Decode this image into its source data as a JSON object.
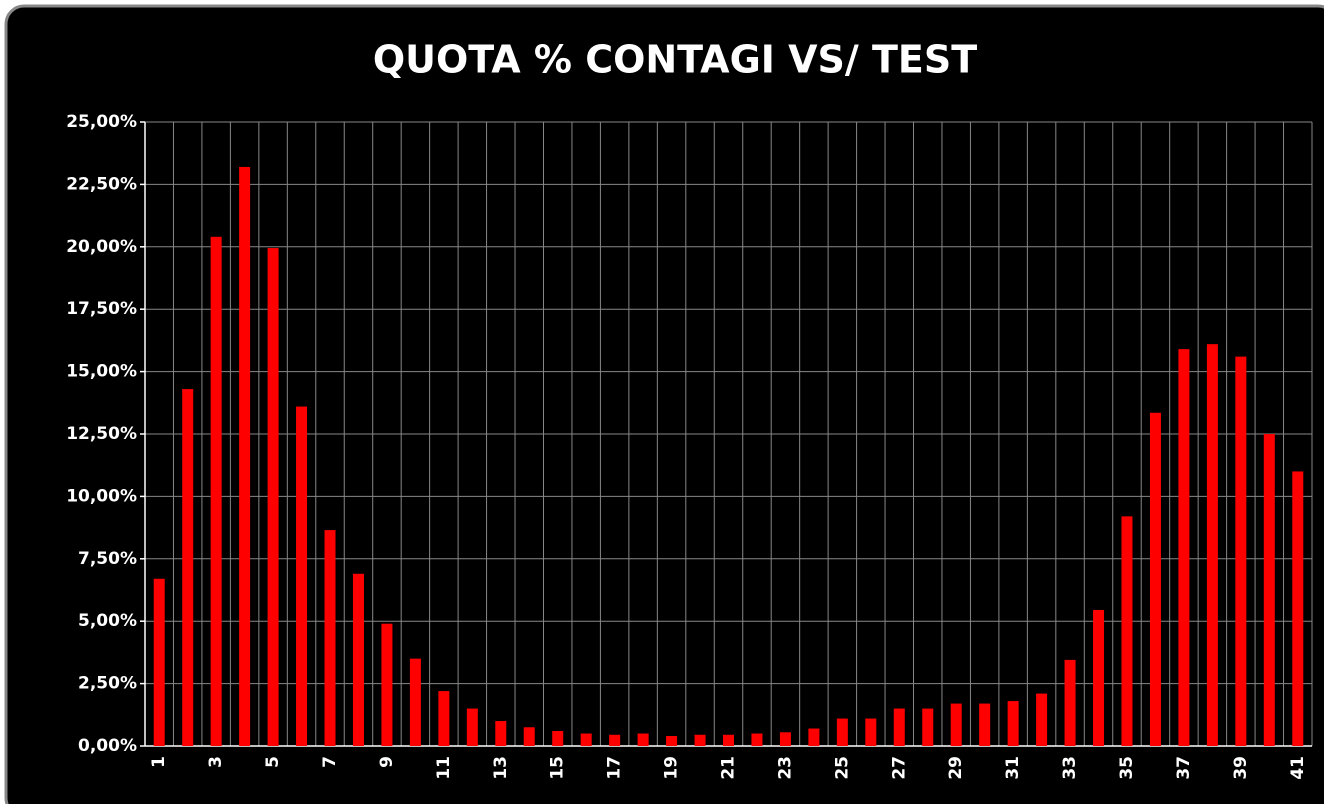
{
  "chart_data": {
    "type": "bar",
    "title": "QUOTA % CONTAGI VS/ TEST",
    "categories": [
      "1",
      null,
      "3",
      null,
      "5",
      null,
      "7",
      null,
      "9",
      null,
      "11",
      null,
      "13",
      null,
      "15",
      null,
      "17",
      null,
      "19",
      null,
      "21",
      null,
      "23",
      null,
      "25",
      null,
      "27",
      null,
      "29",
      null,
      "31",
      null,
      "33",
      null,
      "35",
      null,
      "37",
      null,
      "39",
      null,
      "41"
    ],
    "values": [
      6.7,
      14.3,
      20.4,
      23.2,
      19.95,
      13.6,
      8.65,
      6.9,
      4.9,
      3.5,
      2.2,
      1.5,
      1.0,
      0.75,
      0.6,
      0.5,
      0.45,
      0.5,
      0.4,
      0.45,
      0.45,
      0.5,
      0.55,
      0.7,
      1.1,
      1.1,
      1.5,
      1.5,
      1.7,
      1.7,
      1.8,
      2.1,
      3.45,
      5.45,
      9.2,
      13.35,
      15.9,
      16.1,
      15.6,
      12.5,
      11.0
    ],
    "color": "#ff0000",
    "ylim": [
      0,
      25
    ],
    "yticks": [
      {
        "value": 0,
        "label": "0,00%"
      },
      {
        "value": 2.5,
        "label": "2,50%"
      },
      {
        "value": 5,
        "label": "5,00%"
      },
      {
        "value": 7.5,
        "label": "7,50%"
      },
      {
        "value": 10,
        "label": "10,00%"
      },
      {
        "value": 12.5,
        "label": "12,50%"
      },
      {
        "value": 15,
        "label": "15,00%"
      },
      {
        "value": 17.5,
        "label": "17,50%"
      },
      {
        "value": 20,
        "label": "20,00%"
      },
      {
        "value": 22.5,
        "label": "22,50%"
      },
      {
        "value": 25,
        "label": "25,00%"
      }
    ],
    "grid": true
  }
}
